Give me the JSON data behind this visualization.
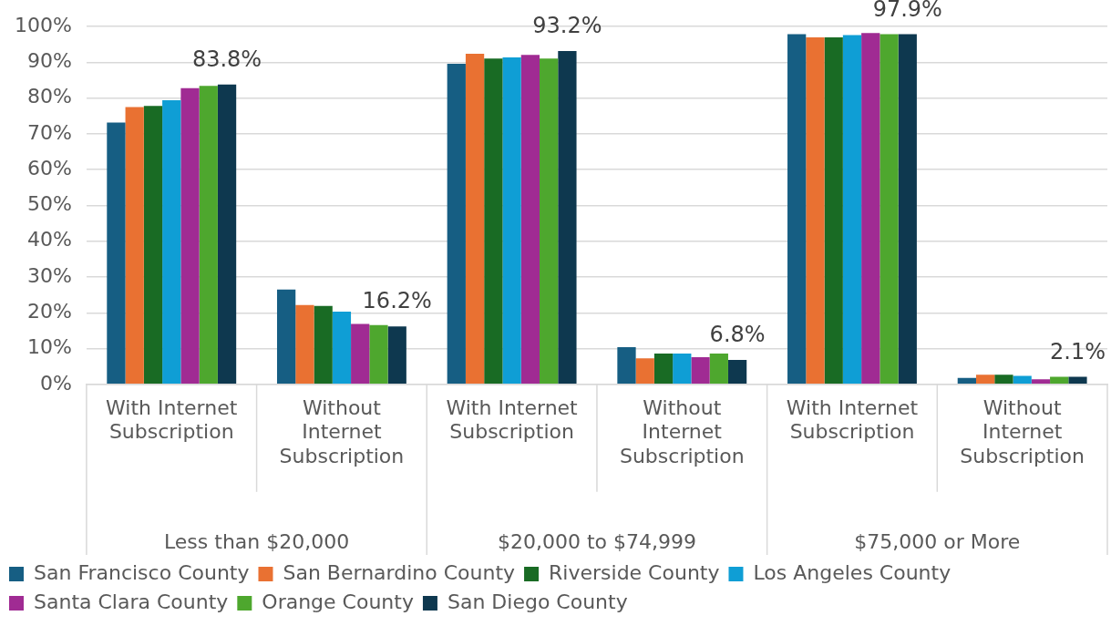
{
  "chart_data": {
    "type": "bar",
    "categories": [
      "With Internet Subscription",
      "Without Internet Subscription",
      "With Internet Subscription",
      "Without Internet Subscription",
      "With Internet Subscription",
      "Without Internet Subscription"
    ],
    "annotations": [
      "Less than $20,000",
      "$20,000 to $74,999",
      "$75,000 or More"
    ],
    "series": [
      {
        "name": "San Francisco County",
        "color": "#165e83",
        "values": [
          73.2,
          26.5,
          89.6,
          10.4,
          97.9,
          1.8
        ]
      },
      {
        "name": "San Bernardino County",
        "color": "#e97132",
        "values": [
          77.5,
          22.2,
          92.4,
          7.3,
          97.0,
          2.7
        ]
      },
      {
        "name": "Riverside County",
        "color": "#196b24",
        "values": [
          77.8,
          21.9,
          91.1,
          8.6,
          97.0,
          2.7
        ]
      },
      {
        "name": "Los Angeles County",
        "color": "#0f9ed5",
        "values": [
          79.4,
          20.3,
          91.4,
          8.6,
          97.6,
          2.4
        ]
      },
      {
        "name": "Santa Clara County",
        "color": "#a02b93",
        "values": [
          82.8,
          16.9,
          92.1,
          7.6,
          98.2,
          1.4
        ]
      },
      {
        "name": "Orange County",
        "color": "#4ea72e",
        "values": [
          83.4,
          16.6,
          91.1,
          8.6,
          97.9,
          2.1
        ]
      },
      {
        "name": "San Diego County",
        "color": "#0e384f",
        "values": [
          83.8,
          16.2,
          93.2,
          6.8,
          97.9,
          2.1
        ],
        "value_labels": [
          "83.8%",
          "16.2%",
          "93.2%",
          "6.8%",
          "97.9%",
          "2.1%"
        ]
      }
    ],
    "ylim": [
      0,
      100
    ],
    "yticks": [
      {
        "value": 0,
        "label": "0%"
      },
      {
        "value": 10,
        "label": "10%"
      },
      {
        "value": 20,
        "label": "20%"
      },
      {
        "value": 30,
        "label": "30%"
      },
      {
        "value": 40,
        "label": "40%"
      },
      {
        "value": 50,
        "label": "50%"
      },
      {
        "value": 60,
        "label": "60%"
      },
      {
        "value": 70,
        "label": "70%"
      },
      {
        "value": 80,
        "label": "80%"
      },
      {
        "value": 90,
        "label": "90%"
      },
      {
        "value": 100,
        "label": "100%"
      }
    ],
    "grid": "y",
    "legend": "bottom"
  }
}
